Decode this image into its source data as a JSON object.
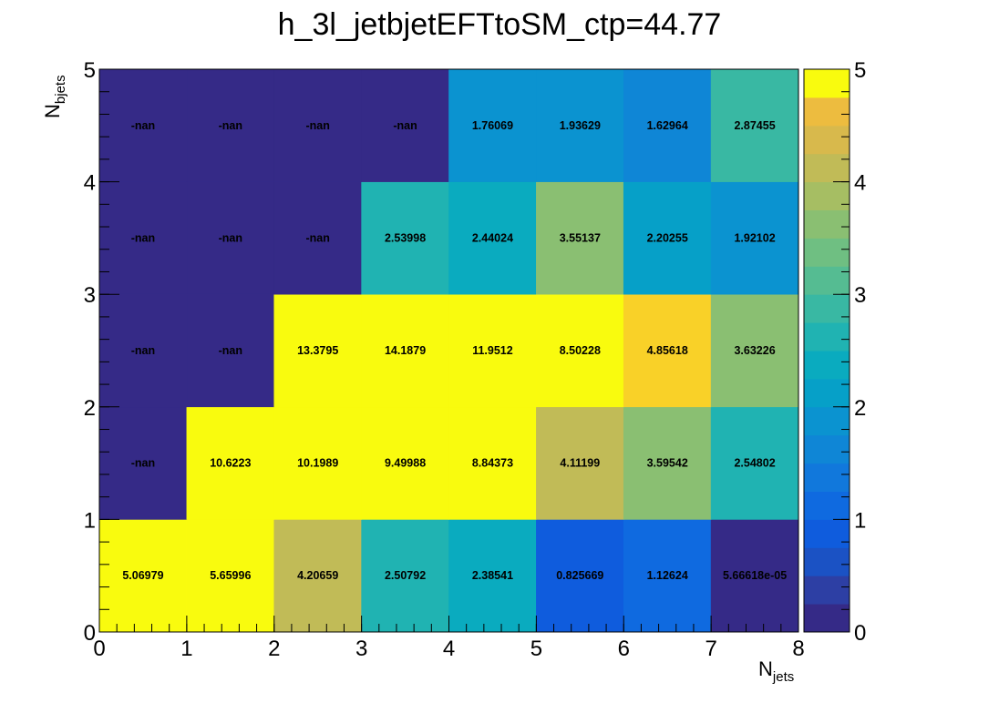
{
  "chart_data": {
    "type": "heatmap",
    "title": "h_3l_jetbjetEFTtoSM_ctp=44.77",
    "xlabel": "N",
    "xlabel_sub": "jets",
    "ylabel": "N",
    "ylabel_sub": "bjets",
    "xlim": [
      0,
      8
    ],
    "ylim": [
      0,
      5
    ],
    "x_ticks": [
      "0",
      "1",
      "2",
      "3",
      "4",
      "5",
      "6",
      "7",
      "8"
    ],
    "y_ticks": [
      "0",
      "1",
      "2",
      "3",
      "4",
      "5"
    ],
    "zlim": [
      0,
      5
    ],
    "z_ticks": [
      "0",
      "1",
      "2",
      "3",
      "4",
      "5"
    ],
    "colormap": "parula",
    "rows": [
      {
        "y": 0.5,
        "values": [
          5.06979,
          5.65996,
          4.20659,
          2.50792,
          2.38541,
          0.825669,
          1.12624,
          5.66618e-05
        ],
        "labels": [
          "5.06979",
          "5.65996",
          "4.20659",
          "2.50792",
          "2.38541",
          "0.825669",
          "1.12624",
          "5.66618e-05"
        ]
      },
      {
        "y": 1.5,
        "values": [
          null,
          10.6223,
          10.1989,
          9.49988,
          8.84373,
          4.11199,
          3.59542,
          2.54802
        ],
        "labels": [
          "-nan",
          "10.6223",
          "10.1989",
          "9.49988",
          "8.84373",
          "4.11199",
          "3.59542",
          "2.54802"
        ]
      },
      {
        "y": 2.5,
        "values": [
          null,
          null,
          13.3795,
          14.1879,
          11.9512,
          8.50228,
          4.85618,
          3.63226
        ],
        "labels": [
          "-nan",
          "-nan",
          "13.3795",
          "14.1879",
          "11.9512",
          "8.50228",
          "4.85618",
          "3.63226"
        ]
      },
      {
        "y": 3.5,
        "values": [
          null,
          null,
          null,
          2.53998,
          2.44024,
          3.55137,
          2.20255,
          1.92102
        ],
        "labels": [
          "-nan",
          "-nan",
          "-nan",
          "2.53998",
          "2.44024",
          "3.55137",
          "2.20255",
          "1.92102"
        ]
      },
      {
        "y": 4.5,
        "values": [
          null,
          null,
          null,
          null,
          1.76069,
          1.93629,
          1.62964,
          2.87455
        ],
        "labels": [
          "-nan",
          "-nan",
          "-nan",
          "-nan",
          "1.76069",
          "1.93629",
          "1.62964",
          "2.87455"
        ]
      }
    ],
    "nan_color": "#352a87",
    "grid": false,
    "legend": "colorbar-right"
  }
}
